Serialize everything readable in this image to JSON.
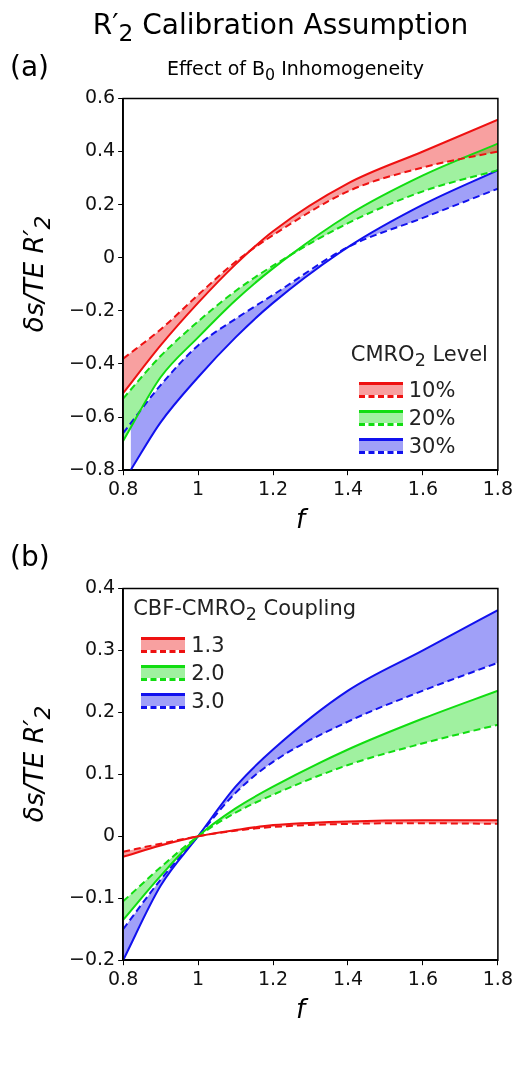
{
  "chart_data": [
    {
      "type": "line",
      "title": "R′$_{2}$ Calibration Assumption",
      "subtitle": "Effect of B$_{0}$ Inhomogeneity",
      "annotations": [
        "(a)"
      ],
      "xlabel": "f",
      "ylabel": "δs/TE R′$_{2}$",
      "legend_title": "CMRO$_{2}$ Level",
      "legend": "bottom right",
      "grid": false,
      "x": [
        0.8,
        0.9,
        1.0,
        1.1,
        1.2,
        1.4,
        1.6,
        1.8
      ],
      "xlim": [
        0.8,
        1.8
      ],
      "xticks": [
        0.8,
        1,
        1.2,
        1.4,
        1.6,
        1.8
      ],
      "ylim": [
        -0.8,
        0.6
      ],
      "yticks": [
        -0.8,
        -0.6,
        -0.4,
        -0.2,
        0,
        0.2,
        0.4,
        0.6
      ],
      "series": [
        {
          "name": "10%",
          "color": "#ee1111",
          "line_style": "solid",
          "values": [
            -0.51,
            -0.33,
            -0.17,
            -0.025,
            0.1,
            0.28,
            0.4,
            0.52
          ],
          "lower": [
            -0.51,
            -0.33,
            -0.17,
            -0.025,
            0.085,
            0.25,
            0.34,
            0.4
          ],
          "upper": [
            -0.38,
            -0.27,
            -0.14,
            -0.015,
            0.1,
            0.28,
            0.4,
            0.52
          ]
        },
        {
          "color": "#ee1111",
          "line_style": "dashed",
          "values": [
            -0.38,
            -0.27,
            -0.14,
            -0.015,
            0.085,
            0.25,
            0.34,
            0.4
          ]
        },
        {
          "name": "20%",
          "color": "#11dd11",
          "line_style": "solid",
          "values": [
            -0.69,
            -0.45,
            -0.3,
            -0.16,
            -0.04,
            0.16,
            0.31,
            0.43
          ],
          "lower": [
            -0.69,
            -0.45,
            -0.3,
            -0.16,
            -0.04,
            0.13,
            0.25,
            0.33
          ],
          "upper": [
            -0.53,
            -0.37,
            -0.24,
            -0.125,
            -0.03,
            0.16,
            0.31,
            0.43
          ]
        },
        {
          "color": "#11dd11",
          "line_style": "dashed",
          "values": [
            -0.53,
            -0.37,
            -0.24,
            -0.125,
            -0.03,
            0.13,
            0.25,
            0.33
          ]
        },
        {
          "name": "30%",
          "color": "#1111ee",
          "line_style": "solid",
          "x": [
            0.82,
            0.9,
            1.0,
            1.1,
            1.2,
            1.4,
            1.6,
            1.8
          ],
          "values": [
            -0.8,
            -0.62,
            -0.45,
            -0.3,
            -0.17,
            0.04,
            0.2,
            0.33
          ],
          "lower": [
            -0.8,
            -0.62,
            -0.45,
            -0.3,
            -0.17,
            0.04,
            0.15,
            0.26
          ],
          "upper": [
            -0.63,
            -0.48,
            -0.33,
            -0.23,
            -0.14,
            0.04,
            0.2,
            0.33
          ]
        },
        {
          "color": "#1111ee",
          "line_style": "dashed",
          "values": [
            -0.66,
            -0.48,
            -0.33,
            -0.23,
            -0.14,
            0.04,
            0.15,
            0.26
          ]
        }
      ]
    },
    {
      "type": "line",
      "annotations": [
        "(b)"
      ],
      "xlabel": "f",
      "ylabel": "δs/TE R′$_{2}$",
      "legend_title": "CBF-CMRO$_{2}$ Coupling",
      "legend": "top left",
      "grid": false,
      "x": [
        0.8,
        0.9,
        1.0,
        1.1,
        1.2,
        1.4,
        1.6,
        1.8
      ],
      "xlim": [
        0.8,
        1.8
      ],
      "xticks": [
        0.8,
        1,
        1.2,
        1.4,
        1.6,
        1.8
      ],
      "ylim": [
        -0.2,
        0.4
      ],
      "yticks": [
        -0.2,
        -0.1,
        0,
        0.1,
        0.2,
        0.3,
        0.4
      ],
      "series": [
        {
          "name": "1.3",
          "color": "#ee1111",
          "line_style": "solid",
          "values": [
            -0.033,
            -0.015,
            0,
            0.01,
            0.018,
            0.024,
            0.026,
            0.026
          ],
          "lower": [
            -0.033,
            -0.015,
            0,
            0.009,
            0.015,
            0.02,
            0.021,
            0.02
          ],
          "upper": [
            -0.025,
            -0.012,
            0,
            0.01,
            0.018,
            0.024,
            0.026,
            0.026
          ]
        },
        {
          "color": "#ee1111",
          "line_style": "dashed",
          "values": [
            -0.025,
            -0.012,
            0,
            0.009,
            0.015,
            0.02,
            0.021,
            0.02
          ]
        },
        {
          "name": "2.0",
          "color": "#11dd11",
          "line_style": "solid",
          "values": [
            -0.135,
            -0.064,
            0,
            0.045,
            0.08,
            0.14,
            0.19,
            0.235
          ],
          "lower": [
            -0.135,
            -0.064,
            0,
            0.038,
            0.067,
            0.115,
            0.15,
            0.18
          ],
          "upper": [
            -0.105,
            -0.05,
            0,
            0.045,
            0.08,
            0.14,
            0.19,
            0.235
          ]
        },
        {
          "color": "#11dd11",
          "line_style": "dashed",
          "values": [
            -0.105,
            -0.05,
            0,
            0.038,
            0.067,
            0.115,
            0.15,
            0.18
          ]
        },
        {
          "name": "3.0",
          "color": "#1111ee",
          "line_style": "solid",
          "values": [
            -0.2,
            -0.08,
            0,
            0.08,
            0.14,
            0.235,
            0.3,
            0.365
          ],
          "lower": [
            -0.2,
            -0.08,
            0,
            0.07,
            0.12,
            0.185,
            0.235,
            0.28
          ],
          "upper": [
            -0.15,
            -0.07,
            0,
            0.08,
            0.14,
            0.235,
            0.3,
            0.365
          ]
        },
        {
          "color": "#1111ee",
          "line_style": "dashed",
          "values": [
            -0.15,
            -0.07,
            0,
            0.07,
            0.12,
            0.185,
            0.235,
            0.28
          ]
        }
      ]
    }
  ]
}
